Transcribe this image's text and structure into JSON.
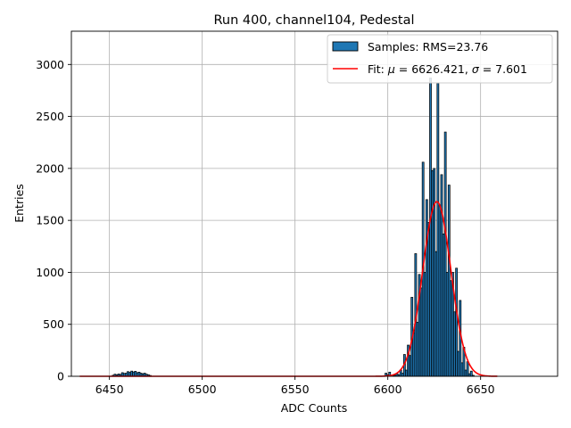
{
  "chart_data": {
    "type": "bar",
    "title": "Run 400, channel104, Pedestal",
    "xlabel": "ADC Counts",
    "ylabel": "Entries",
    "xlim": [
      6429.5,
      6691.5
    ],
    "ylim": [
      0,
      3320
    ],
    "xticks": [
      6450,
      6500,
      6550,
      6600,
      6650
    ],
    "yticks": [
      0,
      500,
      1000,
      1500,
      2000,
      2500,
      3000
    ],
    "grid": true,
    "legend_position": "top-right",
    "legend": [
      {
        "label": "Samples: RMS=23.76",
        "kind": "patch"
      },
      {
        "label": "Fit: μ = 6626.421, σ = 7.601",
        "kind": "line"
      }
    ],
    "colors": {
      "bars": "#1f77b4",
      "bar_edge": "#000000",
      "fit": "#ff0000",
      "grid": "#b0b0b0"
    },
    "histogram": {
      "bin_width": 1,
      "bins": [
        {
          "x": 6452,
          "y": 10
        },
        {
          "x": 6453,
          "y": 20
        },
        {
          "x": 6454,
          "y": 15
        },
        {
          "x": 6455,
          "y": 22
        },
        {
          "x": 6456,
          "y": 18
        },
        {
          "x": 6457,
          "y": 35
        },
        {
          "x": 6458,
          "y": 28
        },
        {
          "x": 6459,
          "y": 30
        },
        {
          "x": 6460,
          "y": 45
        },
        {
          "x": 6461,
          "y": 38
        },
        {
          "x": 6462,
          "y": 50
        },
        {
          "x": 6463,
          "y": 42
        },
        {
          "x": 6464,
          "y": 48
        },
        {
          "x": 6465,
          "y": 35
        },
        {
          "x": 6466,
          "y": 40
        },
        {
          "x": 6467,
          "y": 30
        },
        {
          "x": 6468,
          "y": 25
        },
        {
          "x": 6469,
          "y": 30
        },
        {
          "x": 6470,
          "y": 20
        },
        {
          "x": 6471,
          "y": 15
        },
        {
          "x": 6472,
          "y": 8
        },
        {
          "x": 6599,
          "y": 30
        },
        {
          "x": 6600,
          "y": 15
        },
        {
          "x": 6601,
          "y": 40
        },
        {
          "x": 6603,
          "y": 8
        },
        {
          "x": 6604,
          "y": 10
        },
        {
          "x": 6605,
          "y": 25
        },
        {
          "x": 6606,
          "y": 15
        },
        {
          "x": 6607,
          "y": 60
        },
        {
          "x": 6608,
          "y": 30
        },
        {
          "x": 6609,
          "y": 210
        },
        {
          "x": 6610,
          "y": 60
        },
        {
          "x": 6611,
          "y": 300
        },
        {
          "x": 6612,
          "y": 200
        },
        {
          "x": 6613,
          "y": 760
        },
        {
          "x": 6614,
          "y": 420
        },
        {
          "x": 6615,
          "y": 1180
        },
        {
          "x": 6616,
          "y": 520
        },
        {
          "x": 6617,
          "y": 980
        },
        {
          "x": 6618,
          "y": 850
        },
        {
          "x": 6619,
          "y": 2060
        },
        {
          "x": 6620,
          "y": 1000
        },
        {
          "x": 6621,
          "y": 1700
        },
        {
          "x": 6622,
          "y": 1480
        },
        {
          "x": 6623,
          "y": 2870
        },
        {
          "x": 6624,
          "y": 1980
        },
        {
          "x": 6625,
          "y": 2000
        },
        {
          "x": 6626,
          "y": 1200
        },
        {
          "x": 6627,
          "y": 2820
        },
        {
          "x": 6628,
          "y": 1640
        },
        {
          "x": 6629,
          "y": 1940
        },
        {
          "x": 6630,
          "y": 1370
        },
        {
          "x": 6631,
          "y": 2350
        },
        {
          "x": 6632,
          "y": 1000
        },
        {
          "x": 6633,
          "y": 1840
        },
        {
          "x": 6634,
          "y": 920
        },
        {
          "x": 6635,
          "y": 1000
        },
        {
          "x": 6636,
          "y": 620
        },
        {
          "x": 6637,
          "y": 1040
        },
        {
          "x": 6638,
          "y": 240
        },
        {
          "x": 6639,
          "y": 730
        },
        {
          "x": 6640,
          "y": 130
        },
        {
          "x": 6641,
          "y": 280
        },
        {
          "x": 6642,
          "y": 60
        },
        {
          "x": 6643,
          "y": 140
        },
        {
          "x": 6644,
          "y": 25
        },
        {
          "x": 6645,
          "y": 50
        },
        {
          "x": 6646,
          "y": 10
        }
      ]
    },
    "fit": {
      "function": "gaussian",
      "mu": 6626.421,
      "sigma": 7.601,
      "amplitude": 1680,
      "x_range": [
        6434,
        6659
      ]
    }
  }
}
